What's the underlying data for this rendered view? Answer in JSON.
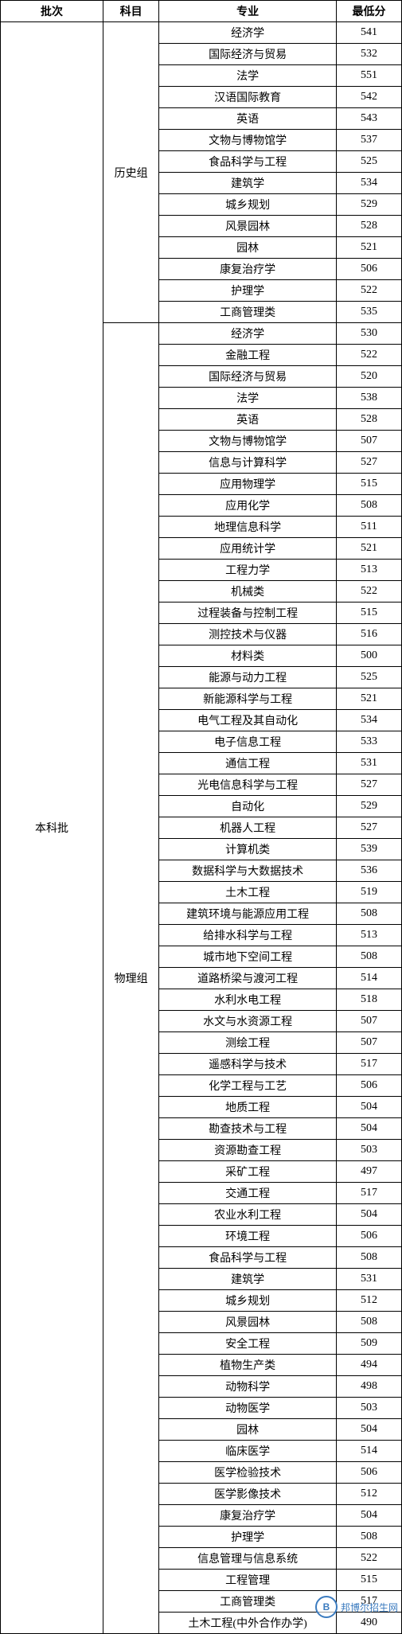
{
  "headers": {
    "batch": "批次",
    "subject": "科目",
    "major": "专业",
    "minScore": "最低分"
  },
  "batch": "本科批",
  "watermark": {
    "logo": "B",
    "text": "邦博尔招生网"
  },
  "groups": [
    {
      "subject": "历史组",
      "rows": [
        {
          "major": "经济学",
          "score": 541
        },
        {
          "major": "国际经济与贸易",
          "score": 532
        },
        {
          "major": "法学",
          "score": 551
        },
        {
          "major": "汉语国际教育",
          "score": 542
        },
        {
          "major": "英语",
          "score": 543
        },
        {
          "major": "文物与博物馆学",
          "score": 537
        },
        {
          "major": "食品科学与工程",
          "score": 525
        },
        {
          "major": "建筑学",
          "score": 534
        },
        {
          "major": "城乡规划",
          "score": 529
        },
        {
          "major": "风景园林",
          "score": 528
        },
        {
          "major": "园林",
          "score": 521
        },
        {
          "major": "康复治疗学",
          "score": 506
        },
        {
          "major": "护理学",
          "score": 522
        },
        {
          "major": "工商管理类",
          "score": 535
        }
      ]
    },
    {
      "subject": "物理组",
      "rows": [
        {
          "major": "经济学",
          "score": 530
        },
        {
          "major": "金融工程",
          "score": 522
        },
        {
          "major": "国际经济与贸易",
          "score": 520
        },
        {
          "major": "法学",
          "score": 538
        },
        {
          "major": "英语",
          "score": 528
        },
        {
          "major": "文物与博物馆学",
          "score": 507
        },
        {
          "major": "信息与计算科学",
          "score": 527
        },
        {
          "major": "应用物理学",
          "score": 515
        },
        {
          "major": "应用化学",
          "score": 508
        },
        {
          "major": "地理信息科学",
          "score": 511
        },
        {
          "major": "应用统计学",
          "score": 521
        },
        {
          "major": "工程力学",
          "score": 513
        },
        {
          "major": "机械类",
          "score": 522
        },
        {
          "major": "过程装备与控制工程",
          "score": 515
        },
        {
          "major": "测控技术与仪器",
          "score": 516
        },
        {
          "major": "材料类",
          "score": 500
        },
        {
          "major": "能源与动力工程",
          "score": 525
        },
        {
          "major": "新能源科学与工程",
          "score": 521
        },
        {
          "major": "电气工程及其自动化",
          "score": 534
        },
        {
          "major": "电子信息工程",
          "score": 533
        },
        {
          "major": "通信工程",
          "score": 531
        },
        {
          "major": "光电信息科学与工程",
          "score": 527
        },
        {
          "major": "自动化",
          "score": 529
        },
        {
          "major": "机器人工程",
          "score": 527
        },
        {
          "major": "计算机类",
          "score": 539
        },
        {
          "major": "数据科学与大数据技术",
          "score": 536
        },
        {
          "major": "土木工程",
          "score": 519
        },
        {
          "major": "建筑环境与能源应用工程",
          "score": 508
        },
        {
          "major": "给排水科学与工程",
          "score": 513
        },
        {
          "major": "城市地下空间工程",
          "score": 508
        },
        {
          "major": "道路桥梁与渡河工程",
          "score": 514
        },
        {
          "major": "水利水电工程",
          "score": 518
        },
        {
          "major": "水文与水资源工程",
          "score": 507
        },
        {
          "major": "测绘工程",
          "score": 507
        },
        {
          "major": "遥感科学与技术",
          "score": 517
        },
        {
          "major": "化学工程与工艺",
          "score": 506
        },
        {
          "major": "地质工程",
          "score": 504
        },
        {
          "major": "勘查技术与工程",
          "score": 504
        },
        {
          "major": "资源勘查工程",
          "score": 503
        },
        {
          "major": "采矿工程",
          "score": 497
        },
        {
          "major": "交通工程",
          "score": 517
        },
        {
          "major": "农业水利工程",
          "score": 504
        },
        {
          "major": "环境工程",
          "score": 506
        },
        {
          "major": "食品科学与工程",
          "score": 508
        },
        {
          "major": "建筑学",
          "score": 531
        },
        {
          "major": "城乡规划",
          "score": 512
        },
        {
          "major": "风景园林",
          "score": 508
        },
        {
          "major": "安全工程",
          "score": 509
        },
        {
          "major": "植物生产类",
          "score": 494
        },
        {
          "major": "动物科学",
          "score": 498
        },
        {
          "major": "动物医学",
          "score": 503
        },
        {
          "major": "园林",
          "score": 504
        },
        {
          "major": "临床医学",
          "score": 514
        },
        {
          "major": "医学检验技术",
          "score": 506
        },
        {
          "major": "医学影像技术",
          "score": 512
        },
        {
          "major": "康复治疗学",
          "score": 504
        },
        {
          "major": "护理学",
          "score": 508
        },
        {
          "major": "信息管理与信息系统",
          "score": 522
        },
        {
          "major": "工程管理",
          "score": 515
        },
        {
          "major": "工商管理类",
          "score": 517
        },
        {
          "major": "土木工程(中外合作办学)",
          "score": 490
        }
      ]
    }
  ]
}
